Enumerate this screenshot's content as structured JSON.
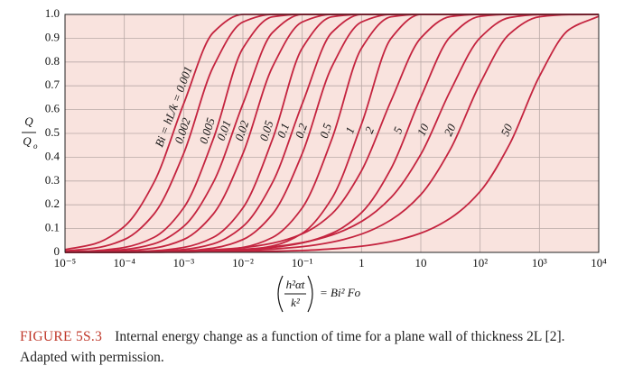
{
  "chart_data": {
    "type": "line",
    "ylabel": {
      "numerator": "Q",
      "denominator": "Q",
      "denominator_subscript": "o"
    },
    "xlabel": {
      "numerator": "h²αt",
      "denominator": "k²",
      "rest": "= Bi² Fo"
    },
    "log_x": true,
    "grid": true,
    "background": "#f9e3de",
    "xlim": [
      1e-05,
      10000
    ],
    "ylim": [
      0,
      1
    ],
    "xticks": [
      {
        "value": 1e-05,
        "label": "10⁻⁵"
      },
      {
        "value": 0.0001,
        "label": "10⁻⁴"
      },
      {
        "value": 0.001,
        "label": "10⁻³"
      },
      {
        "value": 0.01,
        "label": "10⁻²"
      },
      {
        "value": 0.1,
        "label": "10⁻¹"
      },
      1,
      10,
      {
        "value": 100,
        "label": "10²"
      },
      {
        "value": 1000,
        "label": "10³"
      },
      {
        "value": 10000,
        "label": "10⁴"
      }
    ],
    "yticks": [
      0,
      0.1,
      0.2,
      0.3,
      0.4,
      0.5,
      0.6,
      0.7,
      0.8,
      0.9,
      {
        "value": 1,
        "label": "1.0"
      }
    ],
    "x": [
      1e-05,
      3.16e-05,
      0.0001,
      0.000316,
      0.001,
      0.00316,
      0.01,
      0.0316,
      0.1,
      0.316,
      1,
      3.16,
      10,
      31.6,
      100,
      316,
      1000,
      3160,
      10000
    ],
    "series": [
      {
        "name": "Bi = hL/k = 0.001",
        "color": "#c4243f",
        "values": [
          0.012,
          0.036,
          0.109,
          0.294,
          0.624,
          0.924,
          1,
          1,
          1,
          1,
          1,
          1,
          1,
          1,
          1,
          1,
          1,
          1,
          1
        ]
      },
      {
        "name": "0.002",
        "color": "#c4243f",
        "values": [
          0.006,
          0.018,
          0.054,
          0.161,
          0.415,
          0.78,
          0.968,
          1,
          1,
          1,
          1,
          1,
          1,
          1,
          1,
          1,
          1,
          1,
          1
        ]
      },
      {
        "name": "0.005",
        "color": "#c4243f",
        "values": [
          0.002,
          0.007,
          0.021,
          0.063,
          0.187,
          0.476,
          0.858,
          0.99,
          1,
          1,
          1,
          1,
          1,
          1,
          1,
          1,
          1,
          1,
          1
        ]
      },
      {
        "name": "0.01",
        "color": "#c4243f",
        "values": [
          0.001,
          0.004,
          0.012,
          0.036,
          0.109,
          0.294,
          0.624,
          0.924,
          1,
          1,
          1,
          1,
          1,
          1,
          1,
          1,
          1,
          1,
          1
        ]
      },
      {
        "name": "0.02",
        "color": "#c4243f",
        "values": [
          0.001,
          0.002,
          0.006,
          0.018,
          0.054,
          0.161,
          0.415,
          0.78,
          0.968,
          1,
          1,
          1,
          1,
          1,
          1,
          1,
          1,
          1,
          1
        ]
      },
      {
        "name": "0.05",
        "color": "#c4243f",
        "values": [
          0.001,
          0.001,
          0.002,
          0.007,
          0.021,
          0.063,
          0.187,
          0.476,
          0.858,
          0.99,
          1,
          1,
          1,
          1,
          1,
          1,
          1,
          1,
          1
        ]
      },
      {
        "name": "0.1",
        "color": "#c4243f",
        "values": [
          0,
          0.001,
          0.001,
          0.004,
          0.012,
          0.036,
          0.109,
          0.294,
          0.624,
          0.924,
          1,
          1,
          1,
          1,
          1,
          1,
          1,
          1,
          1
        ]
      },
      {
        "name": "0.2",
        "color": "#c4243f",
        "values": [
          0,
          0,
          0.001,
          0.002,
          0.006,
          0.018,
          0.054,
          0.161,
          0.415,
          0.78,
          0.968,
          1,
          1,
          1,
          1,
          1,
          1,
          1,
          1
        ]
      },
      {
        "name": "0.5",
        "color": "#c4243f",
        "values": [
          0,
          0,
          0.001,
          0.001,
          0.002,
          0.007,
          0.021,
          0.063,
          0.187,
          0.476,
          0.858,
          0.99,
          1,
          1,
          1,
          1,
          1,
          1,
          1
        ]
      },
      {
        "name": "1",
        "color": "#c4243f",
        "values": [
          0,
          0,
          0,
          0.001,
          0.001,
          0.003,
          0.009,
          0.027,
          0.08,
          0.227,
          0.539,
          0.9,
          1,
          1,
          1,
          1,
          1,
          1,
          1
        ]
      },
      {
        "name": "2",
        "color": "#c4243f",
        "values": [
          0.001,
          0.002,
          0.003,
          0.004,
          0.006,
          0.011,
          0.02,
          0.039,
          0.078,
          0.162,
          0.343,
          0.638,
          0.901,
          0.991,
          1,
          1,
          1,
          1,
          1
        ]
      },
      {
        "name": "5",
        "color": "#c4243f",
        "values": [
          0.001,
          0.001,
          0.002,
          0.003,
          0.004,
          0.006,
          0.011,
          0.021,
          0.04,
          0.08,
          0.167,
          0.353,
          0.652,
          0.907,
          0.992,
          1,
          1,
          1,
          1
        ]
      },
      {
        "name": "10",
        "color": "#c4243f",
        "values": [
          0,
          0.001,
          0.001,
          0.002,
          0.004,
          0.007,
          0.013,
          0.023,
          0.041,
          0.073,
          0.13,
          0.231,
          0.412,
          0.68,
          0.902,
          0.987,
          0.999,
          1,
          1
        ]
      },
      {
        "name": "20",
        "color": "#c4243f",
        "values": [
          0,
          0,
          0.001,
          0.001,
          0.003,
          0.004,
          0.008,
          0.014,
          0.024,
          0.043,
          0.077,
          0.137,
          0.243,
          0.434,
          0.71,
          0.919,
          0.99,
          0.999,
          1
        ]
      },
      {
        "name": "50",
        "color": "#c4243f",
        "values": [
          0,
          0,
          0,
          0.001,
          0.001,
          0.002,
          0.003,
          0.005,
          0.008,
          0.015,
          0.026,
          0.046,
          0.081,
          0.144,
          0.256,
          0.456,
          0.74,
          0.936,
          0.992
        ]
      }
    ]
  },
  "caption": {
    "label": "FIGURE 5S.3",
    "text": "Internal energy change as a function of time for a plane wall of thickness 2L [2]. Adapted with permission."
  }
}
